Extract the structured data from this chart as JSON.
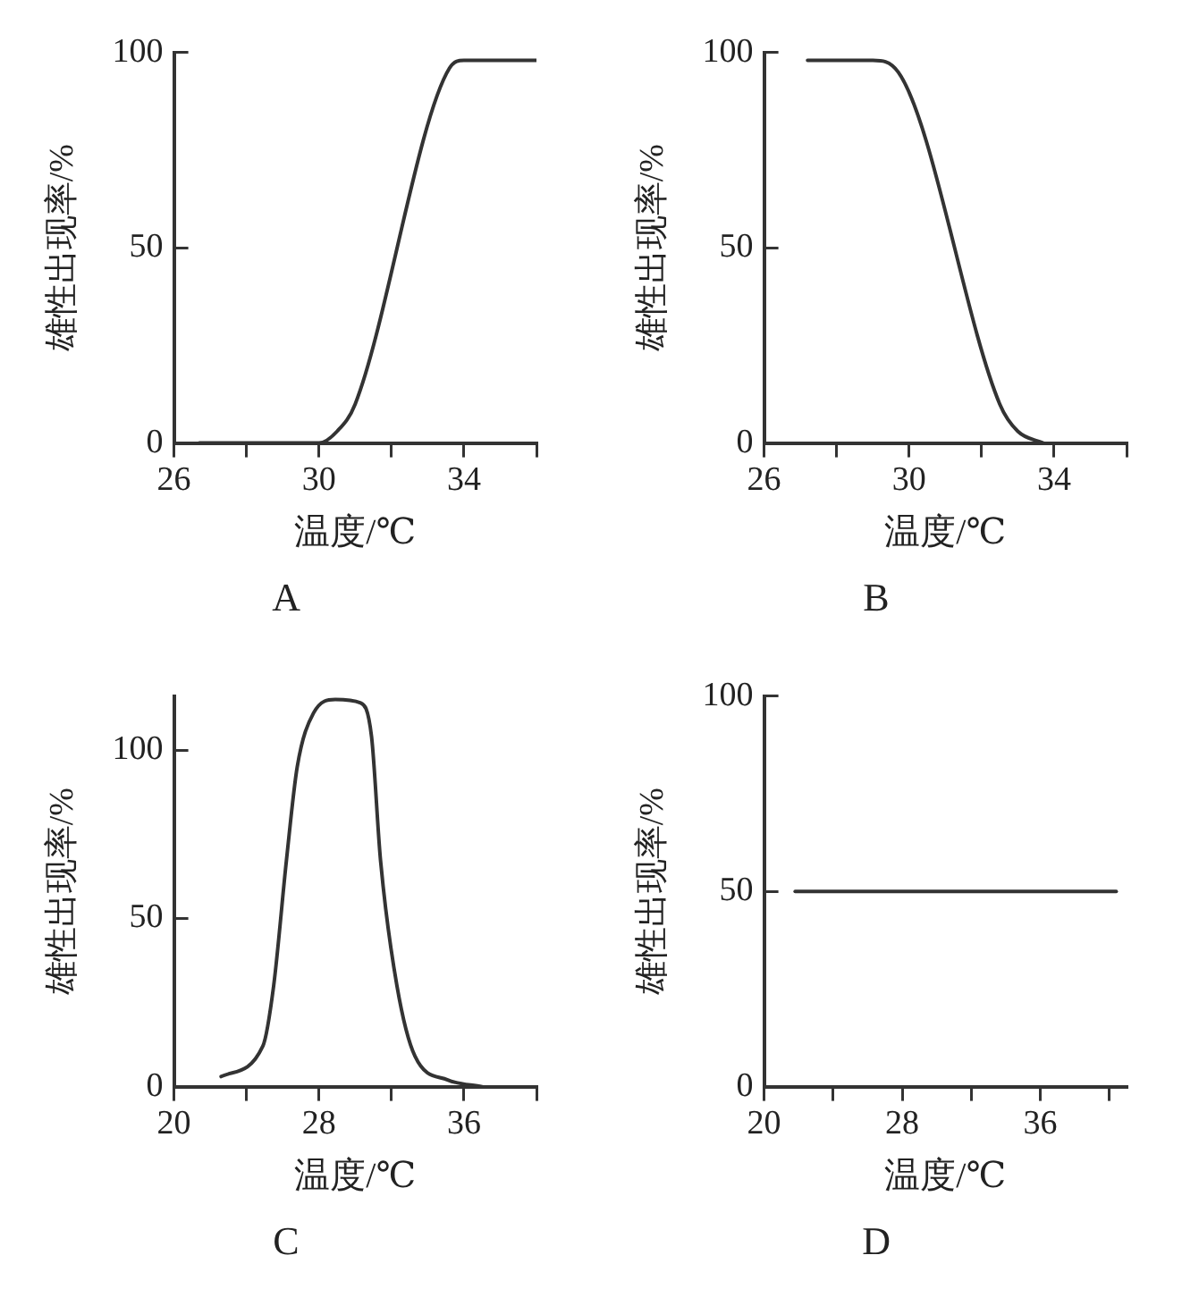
{
  "chart_data": [
    {
      "type": "line",
      "title": "A",
      "xlabel": "温度/℃",
      "ylabel": "雄性出现率/%",
      "grid": false,
      "legend": false,
      "marker": "none",
      "line_style": "solid",
      "xlim": [
        26,
        36
      ],
      "xticks": [
        26,
        {
          "value": 28,
          "label": null
        },
        30,
        {
          "value": 32,
          "label": null
        },
        34,
        {
          "value": 36,
          "label": null
        }
      ],
      "ylim": [
        0,
        100
      ],
      "yticks": [
        0,
        50,
        100
      ],
      "series": [
        {
          "color": "#333333",
          "x": [
            26.7,
            30,
            30.5,
            31,
            33.6,
            34,
            36
          ],
          "values": [
            0,
            0,
            3,
            10,
            96,
            98,
            98
          ]
        }
      ]
    },
    {
      "type": "line",
      "title": "B",
      "xlabel": "温度/℃",
      "ylabel": "雄性出现率/%",
      "grid": false,
      "legend": false,
      "marker": "none",
      "line_style": "solid",
      "xlim": [
        26,
        36
      ],
      "xticks": [
        26,
        {
          "value": 28,
          "label": null
        },
        30,
        {
          "value": 32,
          "label": null
        },
        34,
        {
          "value": 36,
          "label": null
        }
      ],
      "ylim": [
        0,
        100
      ],
      "yticks": [
        0,
        50,
        100
      ],
      "series": [
        {
          "color": "#333333",
          "x": [
            27.2,
            29,
            29.7,
            32.5,
            33,
            33.7
          ],
          "values": [
            98,
            98,
            95,
            10,
            3,
            0
          ]
        }
      ]
    },
    {
      "type": "line",
      "title": "C",
      "xlabel": "温度/℃",
      "ylabel": "雄性出现率/%",
      "grid": false,
      "legend": false,
      "marker": "none",
      "line_style": "solid",
      "xlim": [
        20,
        40
      ],
      "xticks": [
        20,
        {
          "value": 24,
          "label": null
        },
        28,
        {
          "value": 32,
          "label": null
        },
        36,
        {
          "value": 40,
          "label": null
        }
      ],
      "ylim": [
        0,
        116
      ],
      "yticks": [
        0,
        50,
        100
      ],
      "series": [
        {
          "color": "#333333",
          "x": [
            22.6,
            24.9,
            25.5,
            26.2,
            26.8,
            27.7,
            28.9,
            30.3,
            30.9,
            31.4,
            32.3,
            33.3,
            35.1,
            37
          ],
          "values": [
            3,
            12,
            30,
            67,
            95,
            111,
            115,
            114,
            104,
            67,
            30,
            9,
            2,
            0
          ]
        }
      ]
    },
    {
      "type": "line",
      "title": "D",
      "xlabel": "温度/℃",
      "ylabel": "雄性出现率/%",
      "grid": false,
      "legend": false,
      "marker": "none",
      "line_style": "solid",
      "xlim": [
        20,
        41
      ],
      "xticks": [
        20,
        {
          "value": 24,
          "label": null
        },
        28,
        {
          "value": 32,
          "label": null
        },
        36,
        {
          "value": 40,
          "label": null
        }
      ],
      "ylim": [
        0,
        100
      ],
      "yticks": [
        0,
        50,
        100
      ],
      "series": [
        {
          "color": "#333333",
          "x": [
            21.8,
            40.4
          ],
          "values": [
            50,
            50
          ]
        }
      ]
    }
  ]
}
